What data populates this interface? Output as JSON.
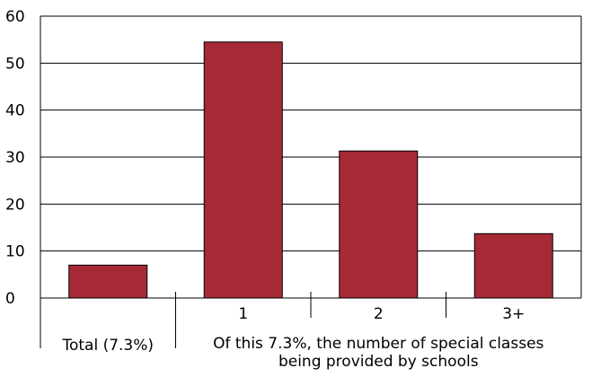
{
  "chart_data": {
    "type": "bar",
    "categories": [
      "Total (7.3%)",
      "1",
      "2",
      "3+"
    ],
    "values": [
      7,
      54.5,
      31.3,
      13.7
    ],
    "ylim": [
      0,
      60
    ],
    "yticks": [
      0,
      10,
      20,
      30,
      40,
      50,
      60
    ],
    "grid": true,
    "bar_color": "#a52a35",
    "group_label_lines": [
      "Of this 7.3%, the number of special classes",
      "being provided by schools"
    ]
  }
}
